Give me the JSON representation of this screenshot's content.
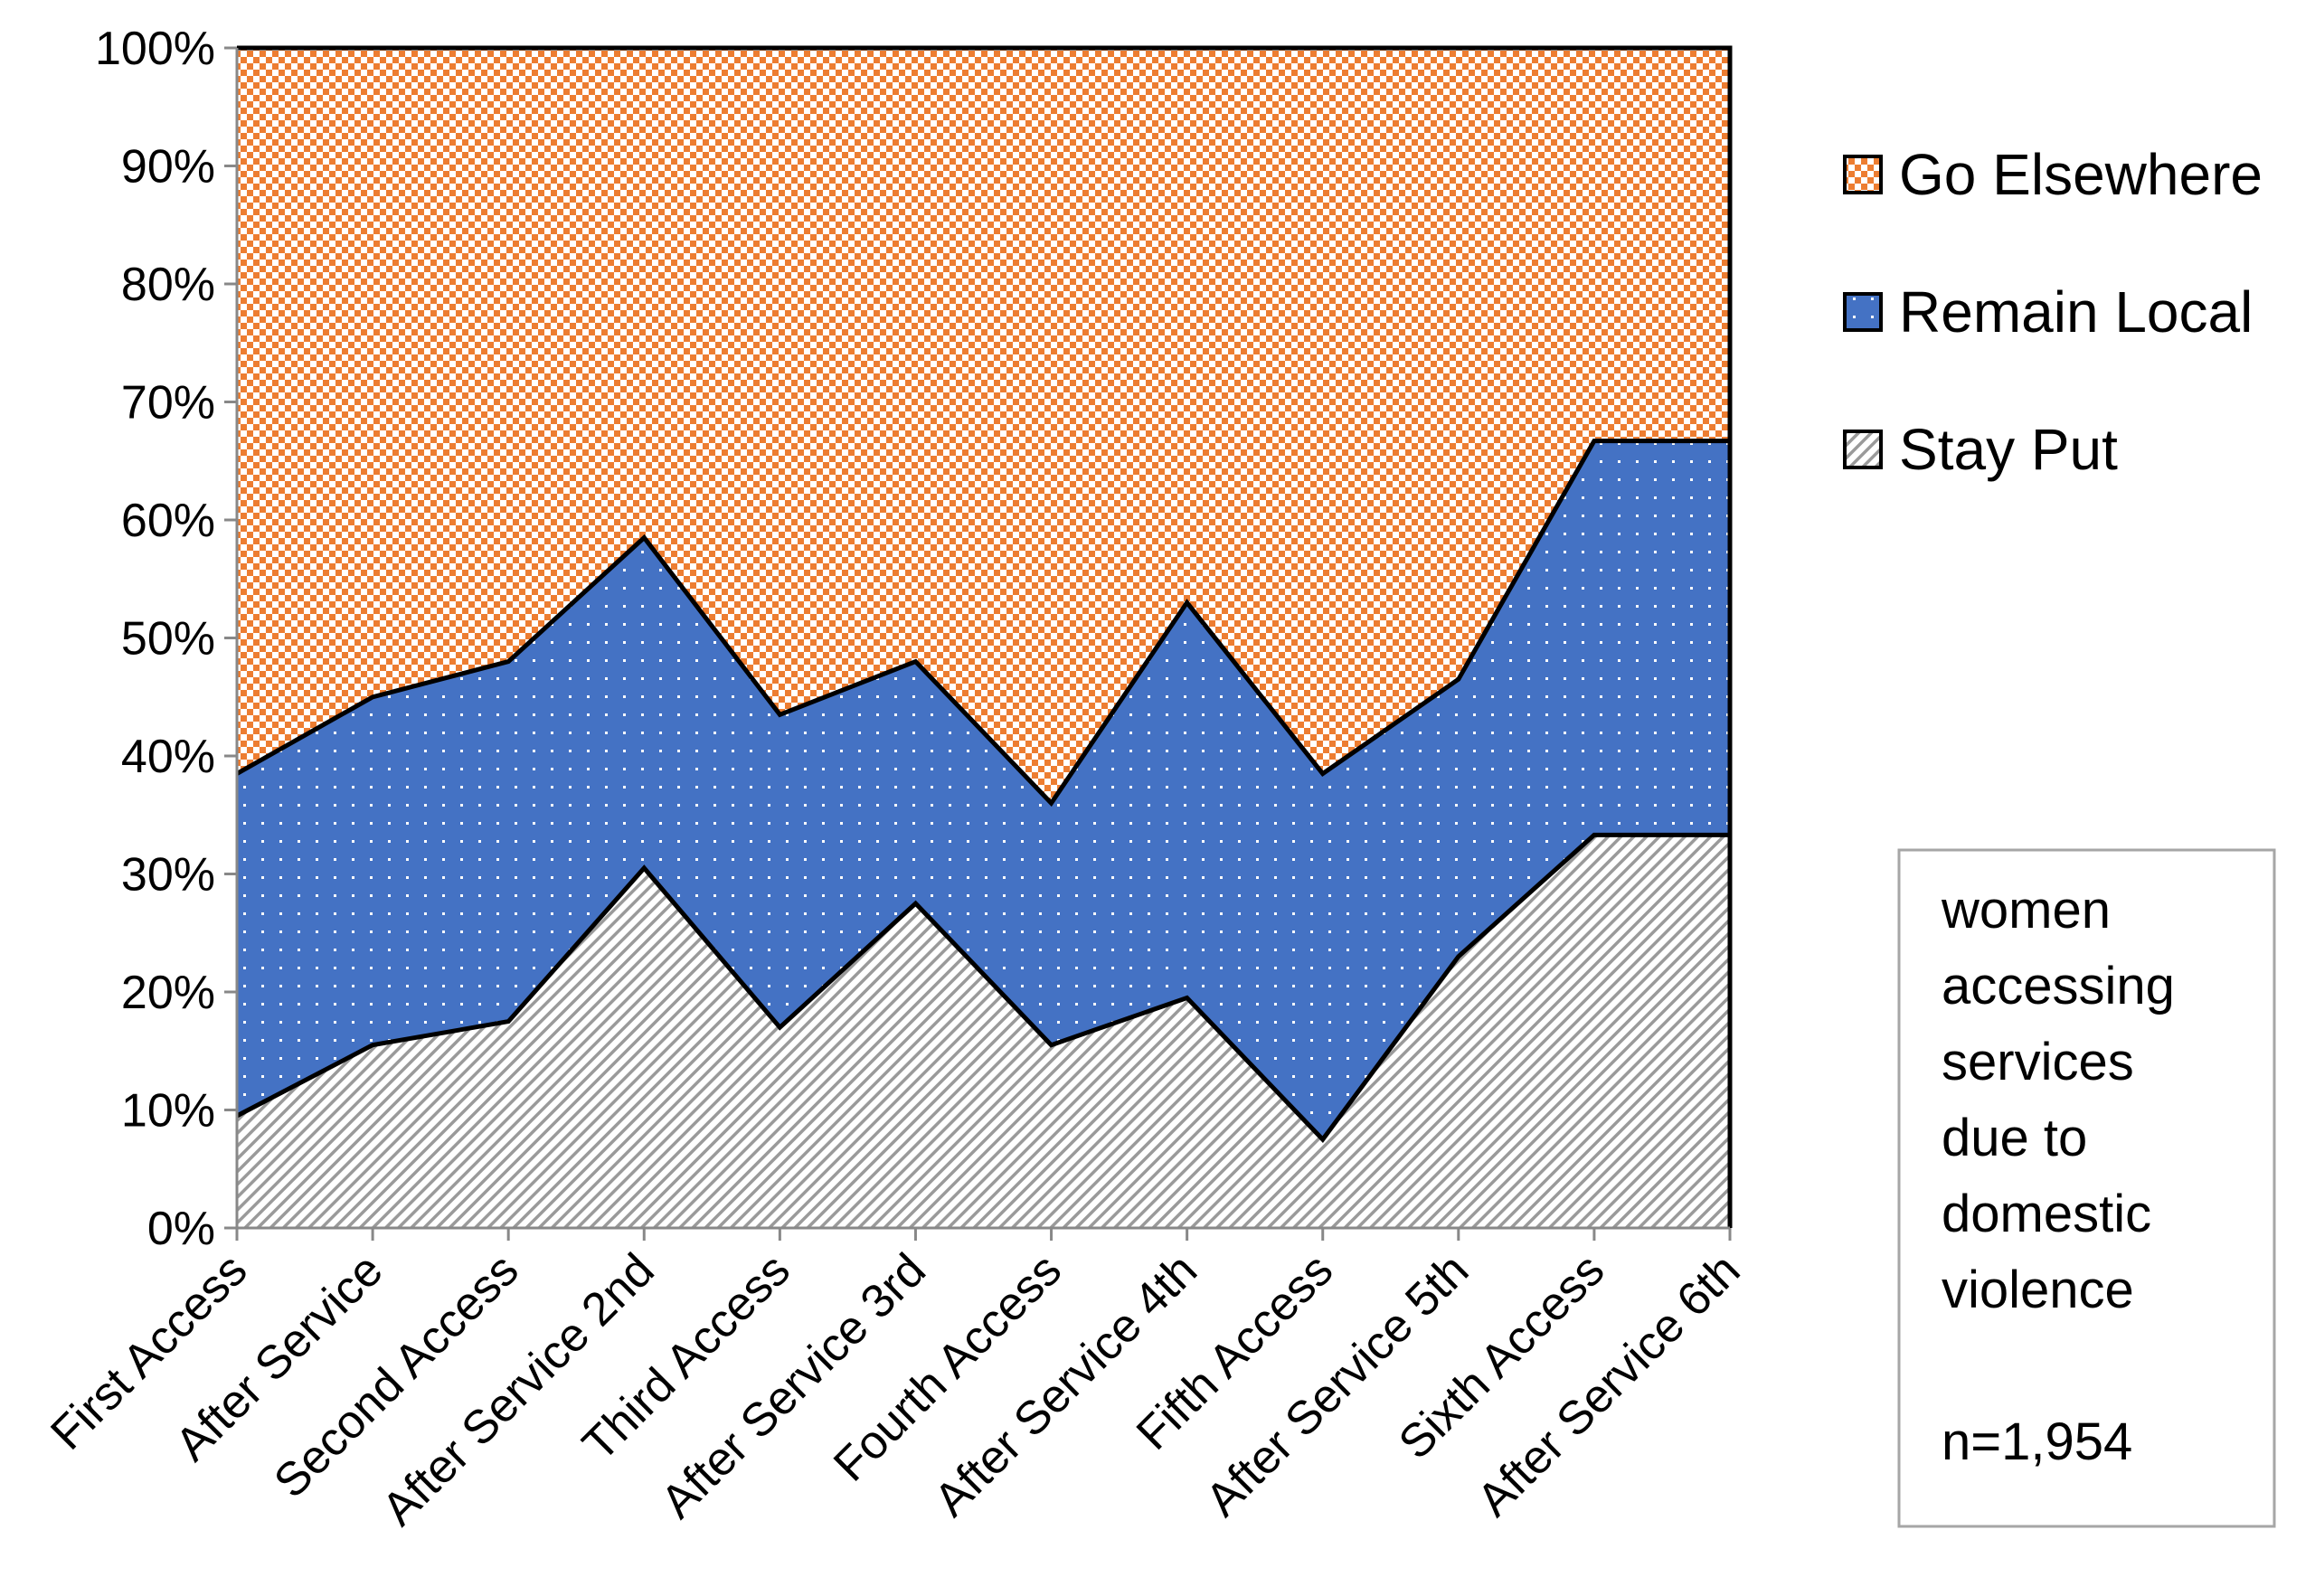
{
  "chart_data": {
    "type": "area",
    "stacked": true,
    "normalized": true,
    "categories": [
      "First Access",
      "After Service",
      "Second Access",
      "After Service 2nd",
      "Third Access",
      "After Service 3rd",
      "Fourth Access",
      "After Service 4th",
      "Fifth Access",
      "After Service 5th",
      "Sixth Access",
      "After Service 6th"
    ],
    "series": [
      {
        "name": "Stay Put",
        "values": [
          9.5,
          15.5,
          17.5,
          30.5,
          17,
          27.5,
          15.5,
          19.5,
          7.5,
          23,
          33.3,
          33.3
        ]
      },
      {
        "name": "Remain Local",
        "values": [
          29,
          29.5,
          30.5,
          28,
          26.5,
          20.5,
          20.5,
          33.5,
          31,
          23.5,
          33.4,
          33.4
        ]
      },
      {
        "name": "Go Elsewhere",
        "values": [
          61.5,
          55,
          52,
          41.5,
          56.5,
          52,
          64,
          47,
          61.5,
          53.5,
          33.3,
          33.3
        ]
      }
    ],
    "ylim": [
      0,
      100
    ],
    "yticks": [
      "0%",
      "10%",
      "20%",
      "30%",
      "40%",
      "50%",
      "60%",
      "70%",
      "80%",
      "90%",
      "100%"
    ],
    "legend": {
      "position": "right",
      "entries": [
        "Go Elsewhere",
        "Remain Local",
        "Stay Put"
      ]
    },
    "annotation": {
      "lines": [
        "women",
        "accessing",
        "services",
        "due to",
        "domestic",
        "violence",
        "",
        "n=1,954"
      ]
    },
    "colors": {
      "Go Elsewhere": "#ED7D31",
      "Remain Local": "#4472C4",
      "Stay Put": "#D9D9D9"
    }
  }
}
